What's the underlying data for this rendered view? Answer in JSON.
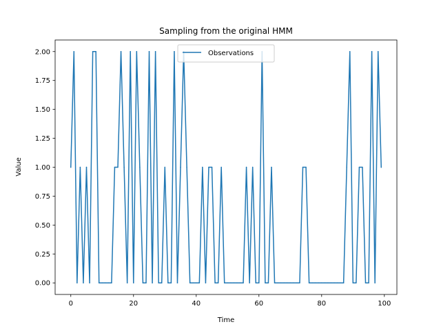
{
  "chart_data": {
    "type": "line",
    "title": "Sampling from the original HMM",
    "xlabel": "Time",
    "ylabel": "Value",
    "xlim": [
      -5,
      104
    ],
    "ylim": [
      -0.1,
      2.1
    ],
    "xticks": [
      0,
      20,
      40,
      60,
      80,
      100
    ],
    "xtick_labels": [
      "0",
      "20",
      "40",
      "60",
      "80",
      "100"
    ],
    "yticks": [
      0,
      0.25,
      0.5,
      0.75,
      1.0,
      1.25,
      1.5,
      1.75,
      2.0
    ],
    "ytick_labels": [
      "0.00",
      "0.25",
      "0.50",
      "0.75",
      "1.00",
      "1.25",
      "1.50",
      "1.75",
      "2.00"
    ],
    "grid": false,
    "legend_position": "top-center",
    "series": [
      {
        "name": "Observations",
        "color": "#1f77b4",
        "x": [
          0,
          1,
          2,
          3,
          4,
          5,
          6,
          7,
          8,
          9,
          10,
          11,
          12,
          13,
          14,
          15,
          16,
          17,
          18,
          19,
          20,
          21,
          22,
          23,
          24,
          25,
          26,
          27,
          28,
          29,
          30,
          31,
          32,
          33,
          34,
          35,
          36,
          37,
          38,
          39,
          40,
          41,
          42,
          43,
          44,
          45,
          46,
          47,
          48,
          49,
          50,
          51,
          52,
          53,
          54,
          55,
          56,
          57,
          58,
          59,
          60,
          61,
          62,
          63,
          64,
          65,
          66,
          67,
          68,
          69,
          70,
          71,
          72,
          73,
          74,
          75,
          76,
          77,
          78,
          79,
          80,
          81,
          82,
          83,
          84,
          85,
          86,
          87,
          88,
          89,
          90,
          91,
          92,
          93,
          94,
          95,
          96,
          97,
          98,
          99
        ],
        "values": [
          1,
          2,
          0,
          1,
          0,
          1,
          0,
          2,
          2,
          0,
          0,
          0,
          0,
          0,
          1,
          1,
          2,
          1,
          0,
          2,
          0,
          2,
          1,
          0,
          0,
          2,
          0,
          2,
          0,
          0,
          1,
          0,
          0,
          2,
          0,
          1,
          2,
          1,
          0,
          0,
          0,
          0,
          1,
          0,
          1,
          1,
          0,
          0,
          1,
          0,
          0,
          0,
          0,
          0,
          0,
          0,
          1,
          0,
          1,
          0,
          0,
          2,
          0,
          0,
          1,
          0,
          0,
          0,
          0,
          0,
          0,
          0,
          0,
          0,
          1,
          1,
          0,
          0,
          0,
          0,
          0,
          0,
          0,
          0,
          0,
          0,
          0,
          0,
          1,
          2,
          0,
          0,
          1,
          1,
          0,
          0,
          2,
          0,
          2,
          1
        ]
      }
    ]
  }
}
